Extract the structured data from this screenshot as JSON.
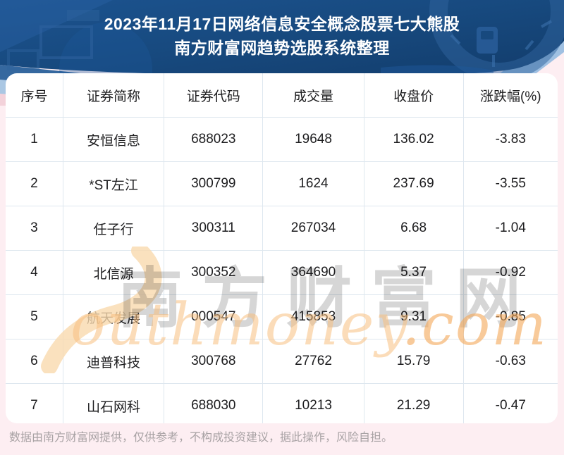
{
  "header": {
    "title_line1": "2023年11月17日网络信息安全概念股票七大熊股",
    "title_line2": "南方财富网趋势选股系统整理"
  },
  "chart_data": {
    "type": "table",
    "title": "2023年11月17日网络信息安全概念股票七大熊股",
    "subtitle": "南方财富网趋势选股系统整理",
    "columns": [
      "序号",
      "证券简称",
      "证券代码",
      "成交量",
      "收盘价",
      "涨跌幅(%)"
    ],
    "rows": [
      [
        "1",
        "安恒信息",
        "688023",
        "19648",
        "136.02",
        "-3.83"
      ],
      [
        "2",
        "*ST左江",
        "300799",
        "1624",
        "237.69",
        "-3.55"
      ],
      [
        "3",
        "任子行",
        "300311",
        "267034",
        "6.68",
        "-1.04"
      ],
      [
        "4",
        "北信源",
        "300352",
        "364690",
        "5.37",
        "-0.92"
      ],
      [
        "5",
        "航天发展",
        "000547",
        "415853",
        "9.31",
        "-0.85"
      ],
      [
        "6",
        "迪普科技",
        "300768",
        "27762",
        "15.79",
        "-0.63"
      ],
      [
        "7",
        "山石网科",
        "688030",
        "10213",
        "21.29",
        "-0.47"
      ]
    ]
  },
  "watermark": {
    "cn_text": "南方财富网",
    "en_text": "outhmoney",
    "en_suffix": ".com"
  },
  "footer": {
    "disclaimer": "数据由南方财富网提供，仅供参考，不构成投资建议，据此操作，风险自担。"
  },
  "colors": {
    "banner_blue": "#17497e",
    "banner_blue_light": "#2a62a4",
    "stripe_blue_mid": "#35689f",
    "stripe_blue_light": "#aac7e3",
    "stripe_pink": "#f3d2da",
    "page_pink": "#fdeef2",
    "table_border": "#dee7ef",
    "text_dark": "#1d1d1f",
    "footer_text": "#a8a2a4",
    "watermark_gray": "#d4d4d4",
    "watermark_orange": "#f7bf80"
  }
}
